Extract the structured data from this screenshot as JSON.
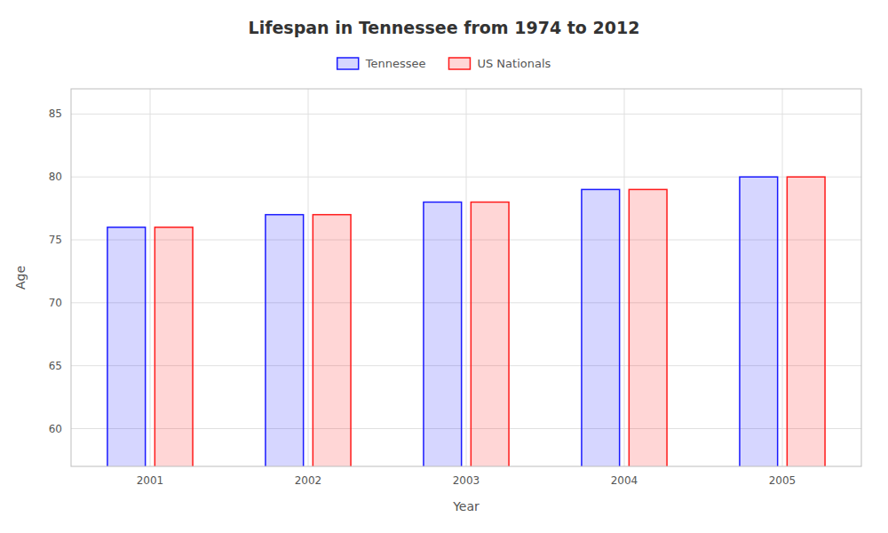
{
  "chart_data": {
    "type": "bar",
    "title": "Lifespan in Tennessee from 1974 to 2012",
    "xlabel": "Year",
    "ylabel": "Age",
    "categories": [
      "2001",
      "2002",
      "2003",
      "2004",
      "2005"
    ],
    "series": [
      {
        "name": "Tennessee",
        "color": "#1a1aff",
        "values": [
          76,
          77,
          78,
          79,
          80
        ]
      },
      {
        "name": "US Nationals",
        "color": "#ff1a1a",
        "values": [
          76,
          77,
          78,
          79,
          80
        ]
      }
    ],
    "ylim": [
      57,
      87
    ],
    "yticks": [
      60,
      65,
      70,
      75,
      80,
      85
    ],
    "grid": true,
    "legend": "top"
  }
}
